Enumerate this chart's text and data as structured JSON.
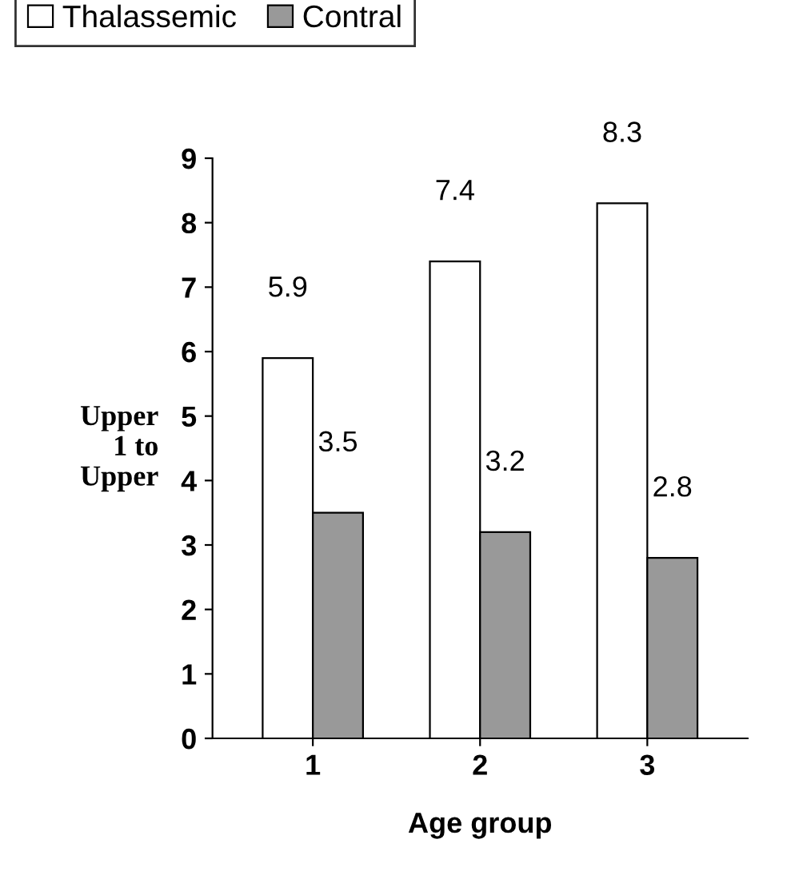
{
  "chart_data": {
    "type": "bar",
    "xlabel": "Age group",
    "ylabel": "Upper\n1 to\nUpper",
    "categories": [
      "1",
      "2",
      "3"
    ],
    "series": [
      {
        "name": "Thalassemic",
        "color": "#ffffff",
        "values": [
          5.9,
          7.4,
          8.3
        ]
      },
      {
        "name": "Contral",
        "color": "#999999",
        "values": [
          3.5,
          3.2,
          2.8
        ]
      }
    ],
    "ylim": [
      0,
      9
    ],
    "yticks": [
      0,
      1,
      2,
      3,
      4,
      5,
      6,
      7,
      8,
      9
    ],
    "grid": false,
    "legend": "top left",
    "data_labels": true
  }
}
